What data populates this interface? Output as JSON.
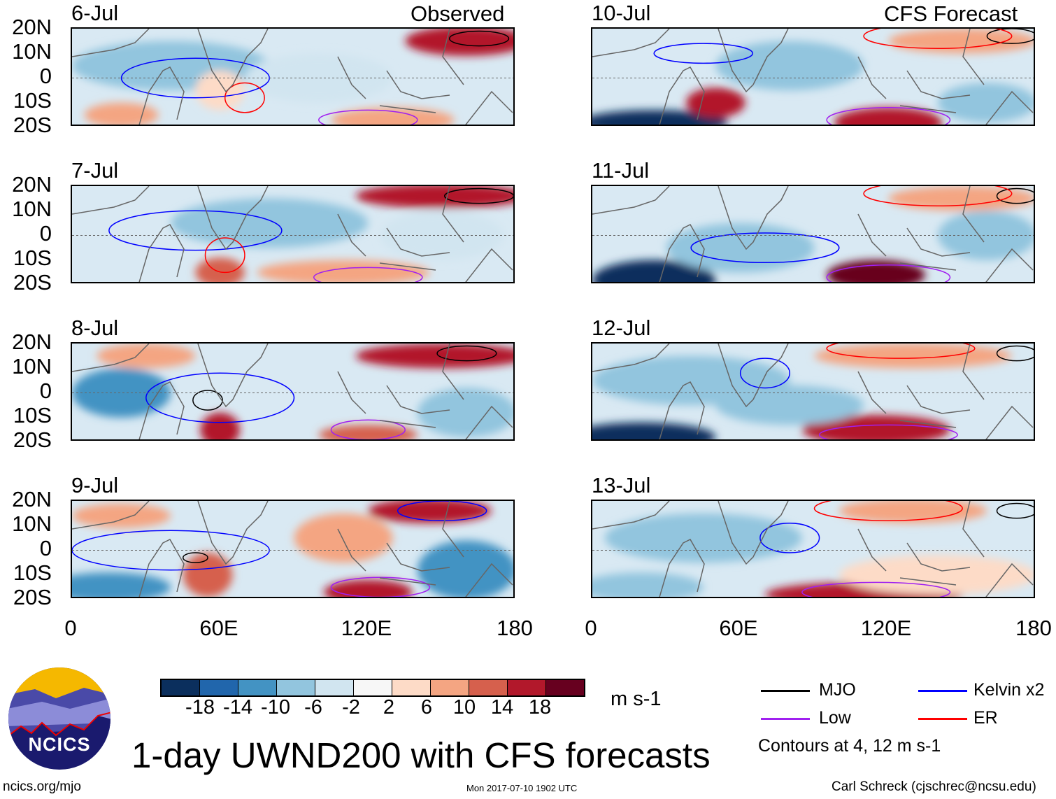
{
  "title": "1-day UWND200 with CFS forecasts",
  "footer": {
    "url": "ncics.org/mjo",
    "timestamp": "Mon 2017-07-10 1902 UTC",
    "author": "Carl Schreck (cjschrec@ncsu.edu)"
  },
  "logo": {
    "text": "NCICS"
  },
  "columns": {
    "left_label": "Observed",
    "right_label": "CFS Forecast"
  },
  "panels": {
    "left": [
      "6-Jul",
      "7-Jul",
      "8-Jul",
      "9-Jul"
    ],
    "right": [
      "10-Jul",
      "11-Jul",
      "12-Jul",
      "13-Jul"
    ]
  },
  "y_ticks": [
    "20N",
    "10N",
    "0",
    "10S",
    "20S"
  ],
  "x_ticks": [
    "0",
    "60E",
    "120E",
    "180"
  ],
  "colorbar": {
    "colors": [
      "#0b2f5d",
      "#2166ac",
      "#4393c3",
      "#92c5de",
      "#d1e5f0",
      "#f7f7f7",
      "#fddbc7",
      "#f4a582",
      "#d6604d",
      "#b2182b",
      "#67001f"
    ],
    "labels": [
      "-18",
      "-14",
      "-10",
      "-6",
      "-2",
      "2",
      "6",
      "10",
      "14",
      "18"
    ],
    "units": "m s-1"
  },
  "legend": {
    "items": [
      {
        "label": "MJO",
        "color": "#000000"
      },
      {
        "label": "Kelvin x2",
        "color": "#0000ff"
      },
      {
        "label": "Low",
        "color": "#a020f0"
      },
      {
        "label": "ER",
        "color": "#ff0000"
      }
    ],
    "note": "Contours at 4, 12 m s-1"
  }
}
